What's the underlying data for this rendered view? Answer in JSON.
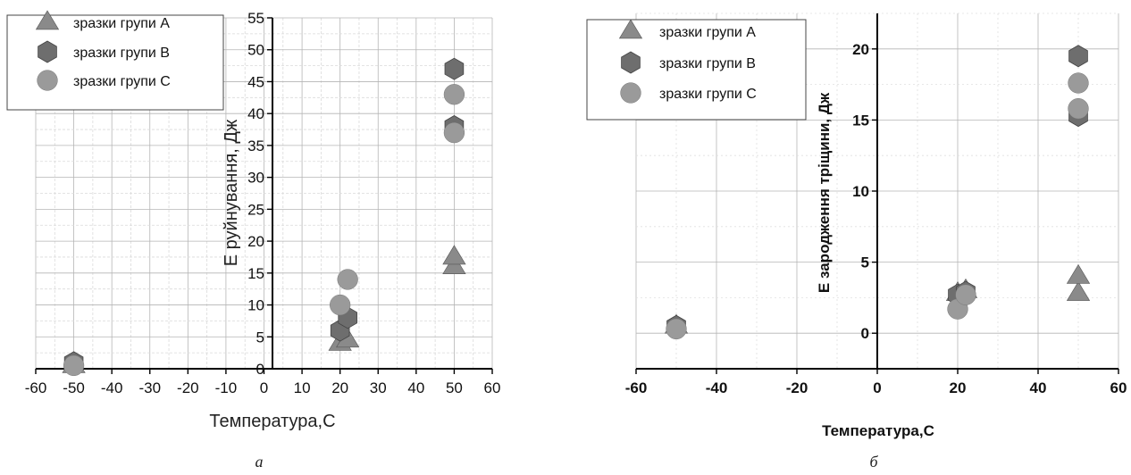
{
  "chart_data": [
    {
      "type": "scatter",
      "panel_label": "а",
      "xlabel": "Температура,С",
      "ylabel": "E руйнування, Дж",
      "xlim": [
        -60,
        60
      ],
      "ylim": [
        0,
        55
      ],
      "xticks": [
        -60,
        -50,
        -40,
        -30,
        -20,
        -10,
        0,
        10,
        20,
        30,
        40,
        50,
        60
      ],
      "yticks": [
        0,
        5,
        10,
        15,
        20,
        25,
        30,
        35,
        40,
        45,
        50,
        55
      ],
      "grid": true,
      "legend_position": "top-left",
      "series": [
        {
          "name": "зразки групи A",
          "marker": "triangle",
          "color": "#8a8a8a",
          "points": [
            [
              -50,
              0.5
            ],
            [
              20,
              4
            ],
            [
              22,
              4.5
            ],
            [
              50,
              16
            ],
            [
              50,
              17.5
            ]
          ]
        },
        {
          "name": "зразки групи B",
          "marker": "hexagon",
          "color": "#6e6e6e",
          "points": [
            [
              -50,
              1
            ],
            [
              20,
              6
            ],
            [
              22,
              8
            ],
            [
              50,
              38
            ],
            [
              50,
              47
            ]
          ]
        },
        {
          "name": "зразки групи C",
          "marker": "circle",
          "color": "#9a9a9a",
          "points": [
            [
              -50,
              0.5
            ],
            [
              20,
              10
            ],
            [
              22,
              14
            ],
            [
              50,
              37
            ],
            [
              50,
              43
            ]
          ]
        }
      ]
    },
    {
      "type": "scatter",
      "panel_label": "б",
      "xlabel": "Температура,С",
      "ylabel": "E зародження тріщини, Дж",
      "xlim": [
        -60,
        60
      ],
      "ylim": [
        -2.5,
        22.5
      ],
      "xticks": [
        -60,
        -40,
        -20,
        0,
        20,
        40,
        60
      ],
      "yticks": [
        0,
        5,
        10,
        15,
        20
      ],
      "grid": true,
      "legend_position": "top-left",
      "series": [
        {
          "name": "зразки групи A",
          "marker": "triangle",
          "color": "#8a8a8a",
          "points": [
            [
              -50,
              0.5
            ],
            [
              20,
              2.8
            ],
            [
              22,
              3.0
            ],
            [
              50,
              2.8
            ],
            [
              50,
              4.0
            ]
          ]
        },
        {
          "name": "зразки групи B",
          "marker": "hexagon",
          "color": "#6e6e6e",
          "points": [
            [
              -50,
              0.5
            ],
            [
              20,
              2.7
            ],
            [
              22,
              2.9
            ],
            [
              50,
              15.3
            ],
            [
              50,
              19.5
            ]
          ]
        },
        {
          "name": "зразки групи C",
          "marker": "circle",
          "color": "#9a9a9a",
          "points": [
            [
              -50,
              0.3
            ],
            [
              20,
              1.7
            ],
            [
              22,
              2.7
            ],
            [
              50,
              15.8
            ],
            [
              50,
              17.6
            ]
          ]
        }
      ]
    }
  ]
}
